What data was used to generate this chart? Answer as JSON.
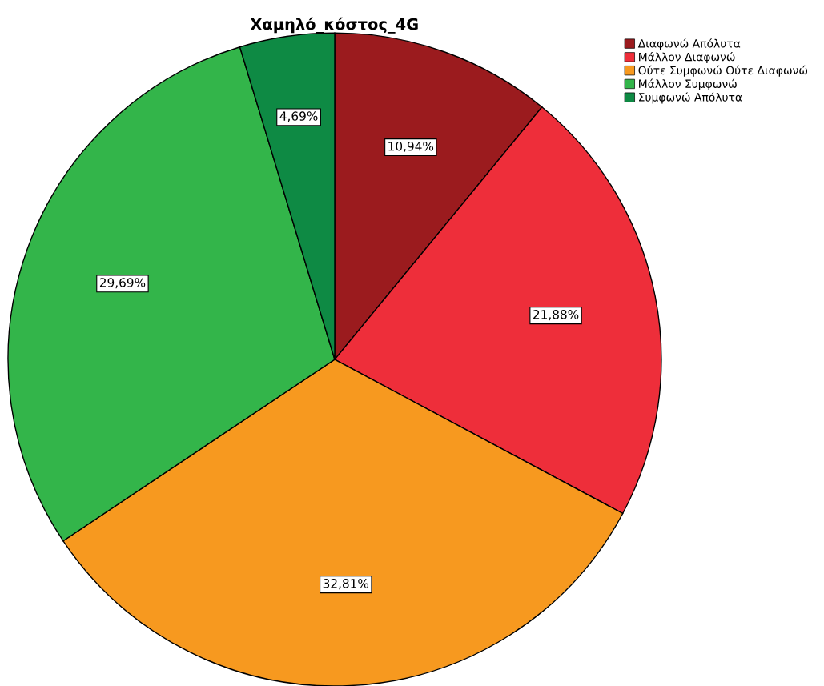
{
  "chart_data": {
    "type": "pie",
    "title": "Χαμηλό_κόστος_4G",
    "categories": [
      "Διαφωνώ Απόλυτα",
      "Μάλλον Διαφωνώ",
      "Ούτε Συμφωνώ Ούτε Διαφωνώ",
      "Μάλλον Συμφωνώ",
      "Συμφωνώ Απόλυτα"
    ],
    "values": [
      10.94,
      21.88,
      32.81,
      29.69,
      4.69
    ],
    "colors": [
      "#9b1b1e",
      "#ee2e3a",
      "#f7991f",
      "#33b54a",
      "#0e8a44"
    ],
    "value_labels": [
      "10,94%",
      "21,88%",
      "32,81%",
      "29,69%",
      "4,69%"
    ],
    "legend": "top right"
  }
}
